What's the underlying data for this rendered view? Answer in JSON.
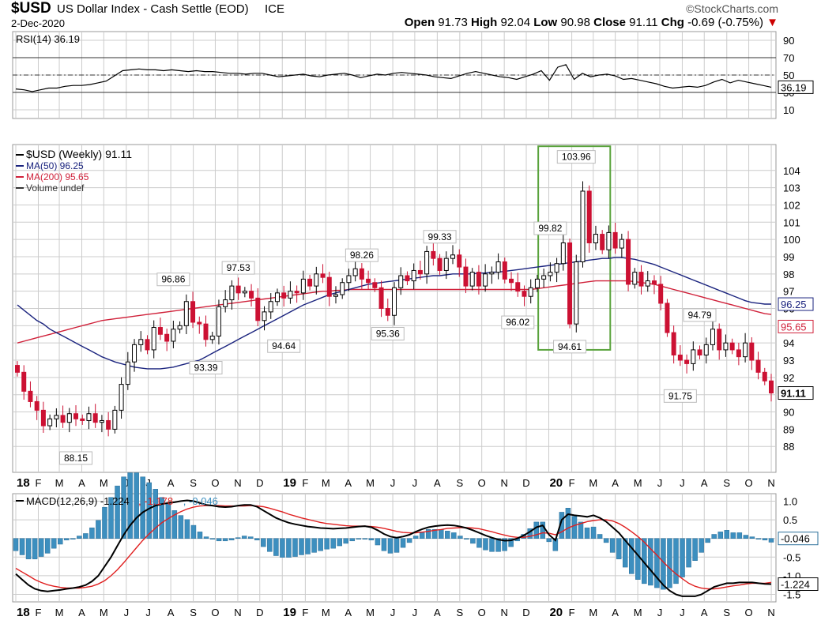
{
  "header": {
    "symbol": "$USD",
    "description": "US Dollar Index - Cash Settle (EOD)",
    "exchange": "ICE",
    "date": "2-Dec-2020",
    "brand": "©StockCharts.com",
    "open_label": "Open",
    "open": "91.73",
    "high_label": "High",
    "high": "92.04",
    "low_label": "Low",
    "low": "90.98",
    "close_label": "Close",
    "close": "91.11",
    "chg_label": "Chg",
    "chg": "-0.69 (-0.75%)"
  },
  "colors": {
    "up_candle": "#000000",
    "down_candle": "#cc1133",
    "ma50": "#1a237e",
    "ma200": "#d0213a",
    "macd": "#000000",
    "signal": "#e02020",
    "hist": "#3d8fbf",
    "highlight_box": "#5aa33d",
    "grid": "#cccccc"
  },
  "chart_data": [
    {
      "type": "line",
      "panel": "RSI",
      "legend": "RSI(14) 36.19",
      "current_label": "36.19",
      "ylim": [
        0,
        100
      ],
      "y_ticks": [
        "90",
        "70",
        "50",
        "30",
        "10"
      ],
      "reference_lines": [
        70,
        50,
        30
      ],
      "values": [
        34,
        33,
        31,
        33,
        35,
        35,
        37,
        38,
        38,
        39,
        41,
        43,
        49,
        55,
        56,
        57,
        56,
        56,
        55,
        56,
        55,
        54,
        55,
        54,
        54,
        53,
        52,
        52,
        51,
        52,
        52,
        50,
        48,
        49,
        50,
        51,
        49,
        48,
        50,
        51,
        52,
        50,
        47,
        49,
        51,
        50,
        52,
        53,
        52,
        51,
        50,
        48,
        47,
        46,
        49,
        52,
        54,
        52,
        50,
        48,
        47,
        45,
        48,
        51,
        55,
        44,
        59,
        62,
        45,
        52,
        48,
        50,
        51,
        49,
        45,
        46,
        44,
        42,
        40,
        37,
        35,
        36,
        37,
        36,
        38,
        42,
        45,
        41,
        44,
        42,
        40,
        38,
        36
      ]
    },
    {
      "type": "candlestick",
      "panel": "Price",
      "legend": [
        "$USD (Weekly) 91.11",
        "MA(50) 96.25",
        "MA(200) 95.65",
        "Volume undef"
      ],
      "price_labels": {
        "close": "91.11",
        "ma50": "96.25",
        "ma200": "95.65"
      },
      "ylim": [
        86.5,
        105.5
      ],
      "y_ticks": [
        "104",
        "103",
        "102",
        "101",
        "100",
        "99",
        "98",
        "97",
        "96",
        "95",
        "94",
        "93",
        "92",
        "91",
        "90",
        "89",
        "88"
      ],
      "annotations": [
        {
          "text": "88.15",
          "x": 9,
          "y": 88.15,
          "pos": "below"
        },
        {
          "text": "96.86",
          "x": 24,
          "y": 96.86,
          "pos": "above"
        },
        {
          "text": "93.39",
          "x": 29,
          "y": 93.39,
          "pos": "below"
        },
        {
          "text": "97.53",
          "x": 34,
          "y": 97.53,
          "pos": "above"
        },
        {
          "text": "94.64",
          "x": 41,
          "y": 94.64,
          "pos": "below"
        },
        {
          "text": "98.26",
          "x": 53,
          "y": 98.26,
          "pos": "above"
        },
        {
          "text": "95.36",
          "x": 57,
          "y": 95.36,
          "pos": "below"
        },
        {
          "text": "99.33",
          "x": 65,
          "y": 99.33,
          "pos": "above"
        },
        {
          "text": "96.02",
          "x": 77,
          "y": 96.02,
          "pos": "below"
        },
        {
          "text": "99.82",
          "x": 82,
          "y": 99.82,
          "pos": "above"
        },
        {
          "text": "103.96",
          "x": 86,
          "y": 103.96,
          "pos": "above"
        },
        {
          "text": "94.61",
          "x": 85,
          "y": 94.61,
          "pos": "below"
        },
        {
          "text": "94.79",
          "x": 105,
          "y": 94.79,
          "pos": "above"
        },
        {
          "text": "91.75",
          "x": 102,
          "y": 91.75,
          "pos": "below"
        }
      ],
      "close": [
        92.3,
        91.2,
        90.6,
        90.1,
        89.2,
        89.6,
        89.8,
        89.4,
        89.9,
        89.6,
        89.5,
        89.9,
        89.4,
        89.5,
        89.0,
        90.1,
        91.6,
        92.9,
        93.9,
        94.2,
        93.6,
        94.9,
        94.5,
        94.1,
        94.8,
        95.0,
        96.4,
        95.2,
        95.1,
        94.2,
        94.4,
        96.1,
        96.5,
        97.3,
        96.9,
        97.0,
        96.6,
        95.3,
        95.8,
        96.4,
        96.9,
        96.6,
        97.0,
        96.9,
        97.7,
        97.3,
        98.0,
        97.8,
        96.7,
        96.8,
        97.5,
        97.9,
        98.3,
        97.7,
        97.5,
        97.2,
        96.0,
        95.6,
        97.2,
        97.9,
        97.6,
        98.2,
        98.0,
        99.3,
        98.9,
        98.2,
        98.9,
        99.1,
        98.4,
        97.3,
        98.1,
        97.3,
        98.0,
        98.1,
        98.7,
        97.7,
        97.5,
        97.0,
        96.7,
        97.2,
        97.7,
        97.9,
        98.1,
        98.6,
        99.8,
        95.1,
        98.7,
        102.8,
        99.8,
        100.3,
        99.4,
        100.4,
        99.5,
        100.0,
        97.4,
        98.1,
        97.3,
        97.6,
        97.4,
        96.3,
        94.6,
        93.3,
        93.0,
        92.8,
        93.6,
        93.3,
        93.9,
        94.8,
        93.6,
        94.0,
        93.6,
        93.2,
        94.0,
        93.0,
        92.3,
        91.8,
        91.1
      ],
      "ma50": [
        96.2,
        95.9,
        95.6,
        95.3,
        95.1,
        94.8,
        94.6,
        94.4,
        94.2,
        94.0,
        93.8,
        93.6,
        93.4,
        93.2,
        93.05,
        92.9,
        92.8,
        92.7,
        92.6,
        92.55,
        92.5,
        92.5,
        92.5,
        92.55,
        92.6,
        92.7,
        92.8,
        92.9,
        93.0,
        93.2,
        93.4,
        93.6,
        93.8,
        94.0,
        94.2,
        94.4,
        94.6,
        94.8,
        95.0,
        95.2,
        95.4,
        95.6,
        95.8,
        96.0,
        96.2,
        96.35,
        96.5,
        96.65,
        96.8,
        96.9,
        97.0,
        97.1,
        97.2,
        97.3,
        97.4,
        97.45,
        97.5,
        97.55,
        97.6,
        97.65,
        97.7,
        97.75,
        97.8,
        97.85,
        97.9,
        97.9,
        97.95,
        98.0,
        98.0,
        98.0,
        98.0,
        98.05,
        98.05,
        98.1,
        98.1,
        98.15,
        98.2,
        98.25,
        98.3,
        98.35,
        98.4,
        98.45,
        98.5,
        98.55,
        98.6,
        98.65,
        98.7,
        98.75,
        98.8,
        98.85,
        98.9,
        98.9,
        98.95,
        98.95,
        98.9,
        98.85,
        98.75,
        98.65,
        98.55,
        98.4,
        98.25,
        98.1,
        97.95,
        97.8,
        97.65,
        97.5,
        97.35,
        97.2,
        97.05,
        96.9,
        96.75,
        96.6,
        96.45,
        96.35,
        96.3,
        96.25,
        96.25
      ],
      "ma200": [
        94.0,
        94.1,
        94.2,
        94.3,
        94.4,
        94.5,
        94.6,
        94.7,
        94.8,
        94.9,
        95.0,
        95.1,
        95.2,
        95.3,
        95.35,
        95.4,
        95.45,
        95.5,
        95.55,
        95.6,
        95.65,
        95.7,
        95.75,
        95.8,
        95.85,
        95.9,
        95.95,
        96.0,
        96.05,
        96.1,
        96.15,
        96.2,
        96.25,
        96.3,
        96.35,
        96.4,
        96.45,
        96.5,
        96.55,
        96.6,
        96.65,
        96.7,
        96.75,
        96.8,
        96.85,
        96.9,
        96.95,
        97.0,
        97.0,
        97.05,
        97.05,
        97.1,
        97.1,
        97.1,
        97.1,
        97.1,
        97.1,
        97.1,
        97.1,
        97.1,
        97.1,
        97.1,
        97.1,
        97.1,
        97.1,
        97.1,
        97.1,
        97.1,
        97.1,
        97.1,
        97.1,
        97.1,
        97.1,
        97.1,
        97.1,
        97.1,
        97.1,
        97.1,
        97.1,
        97.1,
        97.15,
        97.2,
        97.25,
        97.3,
        97.35,
        97.4,
        97.45,
        97.5,
        97.55,
        97.6,
        97.6,
        97.6,
        97.6,
        97.6,
        97.6,
        97.55,
        97.5,
        97.45,
        97.4,
        97.3,
        97.2,
        97.1,
        97.0,
        96.9,
        96.8,
        96.7,
        96.6,
        96.5,
        96.4,
        96.3,
        96.2,
        96.1,
        96.0,
        95.9,
        95.8,
        95.7,
        95.65
      ]
    },
    {
      "type": "line",
      "panel": "MACD",
      "legend": [
        {
          "text": "MACD(12,26,9) -1.224",
          "color": "#000000"
        },
        {
          "text": ", -1.178",
          "color": "#e02020"
        },
        {
          "text": ", -0.046",
          "color": "#3d8fbf"
        }
      ],
      "current_labels": [
        "-0.046",
        "-1.224"
      ],
      "ylim": [
        -1.7,
        1.2
      ],
      "y_ticks": [
        "1.0",
        "0.5",
        "0",
        "-0.5",
        "-1.0",
        "-1.5"
      ],
      "series": [
        {
          "name": "MACD",
          "values": [
            -0.95,
            -1.1,
            -1.25,
            -1.35,
            -1.4,
            -1.42,
            -1.4,
            -1.38,
            -1.35,
            -1.33,
            -1.3,
            -1.25,
            -1.15,
            -1.0,
            -0.75,
            -0.5,
            -0.2,
            0.1,
            0.35,
            0.55,
            0.7,
            0.8,
            0.88,
            0.92,
            0.95,
            0.97,
            1.0,
            1.02,
            1.0,
            0.95,
            0.9,
            0.88,
            0.85,
            0.84,
            0.85,
            0.88,
            0.9,
            0.9,
            0.85,
            0.75,
            0.65,
            0.55,
            0.48,
            0.42,
            0.38,
            0.35,
            0.32,
            0.3,
            0.28,
            0.27,
            0.26,
            0.27,
            0.28,
            0.3,
            0.32,
            0.33,
            0.3,
            0.22,
            0.12,
            0.05,
            0.02,
            0.05,
            0.1,
            0.18,
            0.25,
            0.3,
            0.33,
            0.35,
            0.36,
            0.35,
            0.32,
            0.28,
            0.22,
            0.15,
            0.08,
            0.02,
            -0.03,
            -0.06,
            -0.05,
            0.0,
            0.08,
            0.18,
            0.3,
            0.35,
            0.1,
            -0.05,
            0.5,
            0.65,
            0.62,
            0.6,
            0.58,
            0.62,
            0.55,
            0.45,
            0.3,
            0.15,
            -0.05,
            -0.25,
            -0.45,
            -0.65,
            -0.85,
            -1.05,
            -1.25,
            -1.4,
            -1.5,
            -1.55,
            -1.55,
            -1.55,
            -1.5,
            -1.4,
            -1.3,
            -1.25,
            -1.2,
            -1.2,
            -1.18,
            -1.18,
            -1.18,
            -1.2,
            -1.22,
            -1.224
          ]
        },
        {
          "name": "Signal",
          "values": [
            -0.8,
            -0.9,
            -1.0,
            -1.1,
            -1.18,
            -1.24,
            -1.28,
            -1.31,
            -1.33,
            -1.33,
            -1.33,
            -1.31,
            -1.28,
            -1.22,
            -1.13,
            -1.0,
            -0.84,
            -0.65,
            -0.45,
            -0.25,
            -0.05,
            0.12,
            0.28,
            0.42,
            0.53,
            0.63,
            0.72,
            0.79,
            0.84,
            0.87,
            0.88,
            0.88,
            0.88,
            0.87,
            0.87,
            0.87,
            0.87,
            0.88,
            0.87,
            0.85,
            0.81,
            0.76,
            0.71,
            0.65,
            0.6,
            0.55,
            0.51,
            0.47,
            0.43,
            0.4,
            0.38,
            0.36,
            0.34,
            0.33,
            0.33,
            0.33,
            0.32,
            0.3,
            0.27,
            0.23,
            0.19,
            0.16,
            0.15,
            0.15,
            0.17,
            0.19,
            0.22,
            0.24,
            0.27,
            0.28,
            0.29,
            0.29,
            0.28,
            0.26,
            0.22,
            0.18,
            0.13,
            0.09,
            0.05,
            0.03,
            0.03,
            0.06,
            0.1,
            0.15,
            0.14,
            0.1,
            0.18,
            0.28,
            0.35,
            0.4,
            0.45,
            0.48,
            0.5,
            0.5,
            0.47,
            0.4,
            0.3,
            0.18,
            0.05,
            -0.1,
            -0.28,
            -0.45,
            -0.63,
            -0.8,
            -0.95,
            -1.08,
            -1.2,
            -1.28,
            -1.33,
            -1.35,
            -1.35,
            -1.33,
            -1.3,
            -1.27,
            -1.25,
            -1.22,
            -1.2,
            -1.2,
            -1.2,
            -1.178
          ]
        },
        {
          "name": "Histogram",
          "values": []
        }
      ]
    }
  ],
  "time_axis": {
    "labels": [
      "18",
      "F",
      "M",
      "A",
      "M",
      "J",
      "J",
      "A",
      "S",
      "O",
      "N",
      "D",
      "19",
      "F",
      "M",
      "A",
      "M",
      "J",
      "J",
      "A",
      "S",
      "O",
      "N",
      "D",
      "20",
      "F",
      "M",
      "A",
      "M",
      "J",
      "J",
      "A",
      "S",
      "O",
      "N"
    ],
    "positions_week": [
      0,
      4.4,
      8.5,
      12.9,
      17.2,
      21.6,
      25.9,
      30.3,
      34.7,
      39.0,
      43.4,
      47.7,
      52.1,
      56.6,
      60.6,
      65.0,
      69.3,
      73.7,
      78.0,
      82.4,
      86.8,
      91.1,
      95.5,
      99.8,
      104.2,
      108.7,
      112.9,
      117.2,
      121.6,
      125.9,
      130.3,
      134.6,
      139.0,
      143.3,
      147.7
    ]
  },
  "highlight": {
    "from_week": 80,
    "to_week": 90,
    "top": 105.4,
    "bottom": 93.6
  }
}
